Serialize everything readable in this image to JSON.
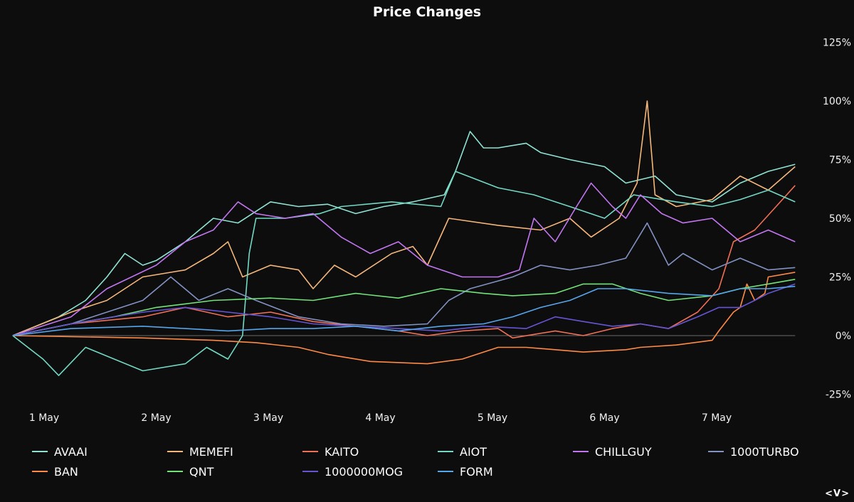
{
  "chart_data": {
    "type": "line",
    "title": "Price Changes",
    "xlabel": "",
    "ylabel": "",
    "x_unit": "days since 1 May",
    "x_ticks": [
      {
        "value": 0,
        "label": "1 May"
      },
      {
        "value": 1,
        "label": "2 May"
      },
      {
        "value": 2,
        "label": "3 May"
      },
      {
        "value": 3,
        "label": "4 May"
      },
      {
        "value": 4,
        "label": "5 May"
      },
      {
        "value": 5,
        "label": "6 May"
      },
      {
        "value": 6,
        "label": "7 May"
      }
    ],
    "y_ticks": [
      {
        "value": 125,
        "label": "125%"
      },
      {
        "value": 100,
        "label": "100%"
      },
      {
        "value": 75,
        "label": "75%"
      },
      {
        "value": 50,
        "label": "50%"
      },
      {
        "value": 25,
        "label": "25%"
      },
      {
        "value": 0,
        "label": "0%"
      },
      {
        "value": -25,
        "label": "-25%"
      }
    ],
    "ylim": [
      -25,
      125
    ],
    "xlim": [
      -0.28,
      6.7
    ],
    "y_axis_position": "right",
    "grid": false,
    "legend_position": "bottom",
    "series": [
      {
        "name": "AVAAI",
        "color": "#8fe3d2",
        "points": [
          [
            -0.28,
            0
          ],
          [
            0.13,
            8
          ],
          [
            0.37,
            15
          ],
          [
            0.56,
            25
          ],
          [
            0.72,
            35
          ],
          [
            0.88,
            30
          ],
          [
            1.0,
            32
          ],
          [
            1.26,
            40
          ],
          [
            1.51,
            50
          ],
          [
            1.73,
            48
          ],
          [
            2.02,
            57
          ],
          [
            2.27,
            55
          ],
          [
            2.53,
            56
          ],
          [
            2.78,
            52
          ],
          [
            3.03,
            55
          ],
          [
            3.29,
            57
          ],
          [
            3.57,
            60
          ],
          [
            3.67,
            70
          ],
          [
            3.8,
            87
          ],
          [
            3.92,
            80
          ],
          [
            4.05,
            80
          ],
          [
            4.3,
            82
          ],
          [
            4.43,
            78
          ],
          [
            4.69,
            75
          ],
          [
            5.0,
            72
          ],
          [
            5.19,
            65
          ],
          [
            5.45,
            68
          ],
          [
            5.64,
            60
          ],
          [
            5.96,
            57
          ],
          [
            6.21,
            65
          ],
          [
            6.46,
            70
          ],
          [
            6.7,
            73
          ]
        ]
      },
      {
        "name": "MEMEFI",
        "color": "#f5b67a",
        "points": [
          [
            -0.28,
            0
          ],
          [
            0.24,
            10
          ],
          [
            0.56,
            15
          ],
          [
            0.88,
            25
          ],
          [
            1.26,
            28
          ],
          [
            1.51,
            35
          ],
          [
            1.64,
            40
          ],
          [
            1.77,
            25
          ],
          [
            2.02,
            30
          ],
          [
            2.27,
            28
          ],
          [
            2.4,
            20
          ],
          [
            2.59,
            30
          ],
          [
            2.78,
            25
          ],
          [
            3.1,
            35
          ],
          [
            3.29,
            38
          ],
          [
            3.42,
            30
          ],
          [
            3.61,
            50
          ],
          [
            4.05,
            47
          ],
          [
            4.43,
            45
          ],
          [
            4.69,
            50
          ],
          [
            4.88,
            42
          ],
          [
            5.13,
            50
          ],
          [
            5.29,
            65
          ],
          [
            5.38,
            100
          ],
          [
            5.45,
            60
          ],
          [
            5.64,
            55
          ],
          [
            5.96,
            58
          ],
          [
            6.21,
            68
          ],
          [
            6.46,
            62
          ],
          [
            6.7,
            72
          ]
        ]
      },
      {
        "name": "KAITO",
        "color": "#f07055",
        "points": [
          [
            -0.28,
            0
          ],
          [
            0.24,
            5
          ],
          [
            0.88,
            8
          ],
          [
            1.26,
            12
          ],
          [
            1.64,
            8
          ],
          [
            2.02,
            10
          ],
          [
            2.4,
            6
          ],
          [
            2.78,
            4
          ],
          [
            3.16,
            2
          ],
          [
            3.42,
            0
          ],
          [
            3.73,
            2
          ],
          [
            4.05,
            3
          ],
          [
            4.18,
            -1
          ],
          [
            4.56,
            2
          ],
          [
            4.81,
            0
          ],
          [
            5.07,
            3
          ],
          [
            5.32,
            5
          ],
          [
            5.57,
            3
          ],
          [
            5.83,
            10
          ],
          [
            6.02,
            20
          ],
          [
            6.15,
            40
          ],
          [
            6.34,
            45
          ],
          [
            6.53,
            55
          ],
          [
            6.7,
            64
          ]
        ]
      },
      {
        "name": "AIOT",
        "color": "#72d9c4",
        "points": [
          [
            -0.28,
            0
          ],
          [
            -0.01,
            -10
          ],
          [
            0.13,
            -17
          ],
          [
            0.37,
            -5
          ],
          [
            0.88,
            -15
          ],
          [
            1.26,
            -12
          ],
          [
            1.45,
            -5
          ],
          [
            1.64,
            -10
          ],
          [
            1.77,
            0
          ],
          [
            1.83,
            35
          ],
          [
            1.89,
            50
          ],
          [
            2.15,
            50
          ],
          [
            2.46,
            52
          ],
          [
            2.65,
            55
          ],
          [
            3.1,
            57
          ],
          [
            3.54,
            55
          ],
          [
            3.67,
            70
          ],
          [
            4.05,
            63
          ],
          [
            4.37,
            60
          ],
          [
            4.69,
            55
          ],
          [
            5.0,
            50
          ],
          [
            5.26,
            60
          ],
          [
            5.64,
            57
          ],
          [
            5.96,
            55
          ],
          [
            6.21,
            58
          ],
          [
            6.46,
            62
          ],
          [
            6.7,
            57
          ]
        ]
      },
      {
        "name": "CHILLGUY",
        "color": "#c276f0",
        "points": [
          [
            -0.28,
            0
          ],
          [
            0.24,
            8
          ],
          [
            0.56,
            20
          ],
          [
            1.0,
            30
          ],
          [
            1.26,
            40
          ],
          [
            1.51,
            45
          ],
          [
            1.73,
            57
          ],
          [
            1.89,
            52
          ],
          [
            2.15,
            50
          ],
          [
            2.4,
            52
          ],
          [
            2.65,
            42
          ],
          [
            2.91,
            35
          ],
          [
            3.16,
            40
          ],
          [
            3.42,
            30
          ],
          [
            3.73,
            25
          ],
          [
            4.05,
            25
          ],
          [
            4.24,
            28
          ],
          [
            4.37,
            50
          ],
          [
            4.56,
            40
          ],
          [
            4.75,
            55
          ],
          [
            4.88,
            65
          ],
          [
            5.07,
            55
          ],
          [
            5.19,
            50
          ],
          [
            5.32,
            60
          ],
          [
            5.51,
            52
          ],
          [
            5.7,
            48
          ],
          [
            5.96,
            50
          ],
          [
            6.21,
            40
          ],
          [
            6.46,
            45
          ],
          [
            6.7,
            40
          ]
        ]
      },
      {
        "name": "1000TURBO",
        "color": "#8292c2",
        "points": [
          [
            -0.28,
            0
          ],
          [
            0.24,
            5
          ],
          [
            0.88,
            15
          ],
          [
            1.13,
            25
          ],
          [
            1.38,
            15
          ],
          [
            1.64,
            20
          ],
          [
            1.89,
            15
          ],
          [
            2.27,
            8
          ],
          [
            2.65,
            5
          ],
          [
            3.03,
            4
          ],
          [
            3.42,
            5
          ],
          [
            3.61,
            15
          ],
          [
            3.8,
            20
          ],
          [
            4.18,
            25
          ],
          [
            4.43,
            30
          ],
          [
            4.69,
            28
          ],
          [
            4.94,
            30
          ],
          [
            5.19,
            33
          ],
          [
            5.38,
            48
          ],
          [
            5.57,
            30
          ],
          [
            5.7,
            35
          ],
          [
            5.96,
            28
          ],
          [
            6.21,
            33
          ],
          [
            6.46,
            28
          ],
          [
            6.7,
            29
          ]
        ]
      },
      {
        "name": "BAN",
        "color": "#ff8a45",
        "points": [
          [
            -0.28,
            0
          ],
          [
            0.88,
            -1
          ],
          [
            1.51,
            -2
          ],
          [
            1.89,
            -3
          ],
          [
            2.27,
            -5
          ],
          [
            2.53,
            -8
          ],
          [
            2.91,
            -11
          ],
          [
            3.42,
            -12
          ],
          [
            3.73,
            -10
          ],
          [
            4.05,
            -5
          ],
          [
            4.3,
            -5
          ],
          [
            4.56,
            -6
          ],
          [
            4.81,
            -7
          ],
          [
            5.19,
            -6
          ],
          [
            5.32,
            -5
          ],
          [
            5.64,
            -4
          ],
          [
            5.96,
            -2
          ],
          [
            6.02,
            2
          ],
          [
            6.15,
            10
          ],
          [
            6.21,
            12
          ],
          [
            6.27,
            22
          ],
          [
            6.34,
            15
          ],
          [
            6.43,
            18
          ],
          [
            6.46,
            25
          ],
          [
            6.7,
            27
          ]
        ]
      },
      {
        "name": "QNT",
        "color": "#72e27a",
        "points": [
          [
            -0.28,
            0
          ],
          [
            0.24,
            5
          ],
          [
            0.62,
            8
          ],
          [
            1.0,
            12
          ],
          [
            1.51,
            15
          ],
          [
            2.02,
            16
          ],
          [
            2.4,
            15
          ],
          [
            2.78,
            18
          ],
          [
            3.16,
            16
          ],
          [
            3.54,
            20
          ],
          [
            3.92,
            18
          ],
          [
            4.18,
            17
          ],
          [
            4.56,
            18
          ],
          [
            4.81,
            22
          ],
          [
            5.07,
            22
          ],
          [
            5.32,
            18
          ],
          [
            5.57,
            15
          ],
          [
            5.96,
            17
          ],
          [
            6.21,
            20
          ],
          [
            6.46,
            22
          ],
          [
            6.7,
            24
          ]
        ]
      },
      {
        "name": "1000000MOG",
        "color": "#6555d6",
        "points": [
          [
            -0.28,
            0
          ],
          [
            0.24,
            5
          ],
          [
            0.88,
            10
          ],
          [
            1.26,
            12
          ],
          [
            1.64,
            10
          ],
          [
            2.02,
            8
          ],
          [
            2.4,
            5
          ],
          [
            2.78,
            4
          ],
          [
            3.16,
            3
          ],
          [
            3.54,
            2
          ],
          [
            3.92,
            4
          ],
          [
            4.3,
            3
          ],
          [
            4.56,
            8
          ],
          [
            4.81,
            6
          ],
          [
            5.07,
            4
          ],
          [
            5.32,
            5
          ],
          [
            5.57,
            3
          ],
          [
            5.83,
            8
          ],
          [
            6.02,
            12
          ],
          [
            6.21,
            12
          ],
          [
            6.34,
            15
          ],
          [
            6.46,
            18
          ],
          [
            6.7,
            22
          ]
        ]
      },
      {
        "name": "FORM",
        "color": "#55a6ec",
        "points": [
          [
            -0.28,
            0
          ],
          [
            0.24,
            3
          ],
          [
            0.88,
            4
          ],
          [
            1.26,
            3
          ],
          [
            1.64,
            2
          ],
          [
            2.02,
            3
          ],
          [
            2.4,
            3
          ],
          [
            2.78,
            4
          ],
          [
            3.16,
            2
          ],
          [
            3.54,
            4
          ],
          [
            3.92,
            5
          ],
          [
            4.18,
            8
          ],
          [
            4.43,
            12
          ],
          [
            4.69,
            15
          ],
          [
            4.94,
            20
          ],
          [
            5.19,
            20
          ],
          [
            5.57,
            18
          ],
          [
            5.96,
            17
          ],
          [
            6.21,
            20
          ],
          [
            6.46,
            20
          ],
          [
            6.7,
            21
          ]
        ]
      }
    ]
  },
  "corner_label": "<V>"
}
